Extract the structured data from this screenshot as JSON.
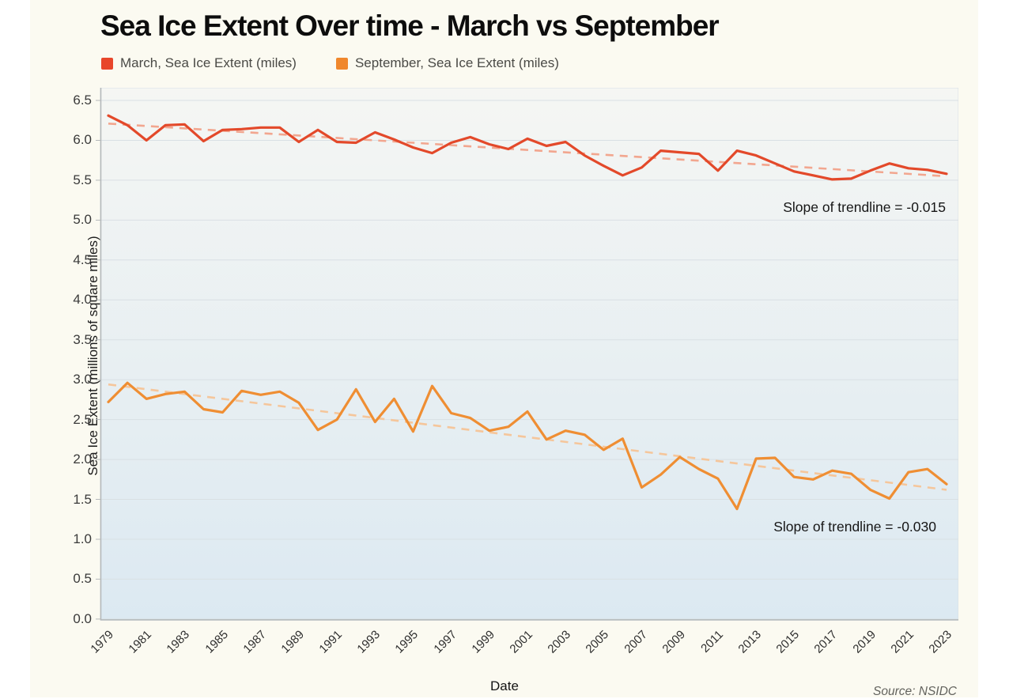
{
  "chart": {
    "title": "Sea Ice Extent Over time - March vs September",
    "xlabel": "Date",
    "ylabel": "Sea Ice Extent (millions of square miles)",
    "source": "Source: NSIDC",
    "legend": [
      {
        "label": "March, Sea Ice Extent (miles)",
        "color": "#e8462b"
      },
      {
        "label": "September, Sea Ice Extent (miles)",
        "color": "#f0872c"
      }
    ],
    "annotations": [
      {
        "text": "Slope of trendline = -0.015",
        "series": "March"
      },
      {
        "text": "Slope of trendline = -0.030",
        "series": "September"
      }
    ],
    "colors": {
      "card_background": "#fbfaf1",
      "plot_gradient_top": "#f5f6f3",
      "plot_gradient_bottom": "#dce9f2",
      "gridline": "#d9e0e4",
      "axis": "#b4b8ba",
      "march_line": "#e3492a",
      "march_trendline": "#f2a68f",
      "september_line": "#ef8e33",
      "september_trendline": "#f5c69b"
    }
  },
  "chart_data": {
    "type": "line",
    "title": "Sea Ice Extent Over time - March vs September",
    "xlabel": "Date",
    "ylabel": "Sea Ice Extent (millions of square miles)",
    "ylim": [
      0.0,
      6.5
    ],
    "ytick_step": 0.5,
    "grid": true,
    "legend_position": "top-left",
    "x": [
      1979,
      1980,
      1981,
      1982,
      1983,
      1984,
      1985,
      1986,
      1987,
      1988,
      1989,
      1990,
      1991,
      1992,
      1993,
      1994,
      1995,
      1996,
      1997,
      1998,
      1999,
      2000,
      2001,
      2002,
      2003,
      2004,
      2005,
      2006,
      2007,
      2008,
      2009,
      2010,
      2011,
      2012,
      2013,
      2014,
      2015,
      2016,
      2017,
      2018,
      2019,
      2020,
      2021,
      2022,
      2023
    ],
    "xticks": [
      "1979",
      "1981",
      "1983",
      "1985",
      "1987",
      "1989",
      "1991",
      "1993",
      "1995",
      "1997",
      "1999",
      "2001",
      "2003",
      "2005",
      "2007",
      "2009",
      "2011",
      "2013",
      "2015",
      "2017",
      "2019",
      "2021",
      "2023"
    ],
    "yticks": [
      "6.5",
      "6.0",
      "5.5",
      "5.0",
      "4.5",
      "4.0",
      "3.5",
      "3.0",
      "2.5",
      "2.0",
      "1.5",
      "1.0",
      "0.5",
      "0.0"
    ],
    "series": [
      {
        "name": "March, Sea Ice Extent (miles)",
        "color": "#e3492a",
        "style": "solid",
        "values": [
          6.31,
          6.19,
          6.0,
          6.19,
          6.2,
          5.99,
          6.13,
          6.14,
          6.16,
          6.16,
          5.98,
          6.13,
          5.98,
          5.97,
          6.1,
          6.01,
          5.91,
          5.84,
          5.97,
          6.04,
          5.95,
          5.89,
          6.02,
          5.93,
          5.98,
          5.81,
          5.68,
          5.56,
          5.66,
          5.87,
          5.85,
          5.83,
          5.62,
          5.87,
          5.81,
          5.71,
          5.61,
          5.56,
          5.51,
          5.52,
          5.62,
          5.71,
          5.65,
          5.63,
          5.58
        ]
      },
      {
        "name": "September, Sea Ice Extent (miles)",
        "color": "#ef8e33",
        "style": "solid",
        "values": [
          2.72,
          2.96,
          2.76,
          2.82,
          2.85,
          2.63,
          2.59,
          2.86,
          2.81,
          2.85,
          2.71,
          2.37,
          2.5,
          2.88,
          2.47,
          2.76,
          2.35,
          2.92,
          2.58,
          2.52,
          2.36,
          2.41,
          2.6,
          2.25,
          2.36,
          2.31,
          2.12,
          2.26,
          1.65,
          1.81,
          2.03,
          1.88,
          1.76,
          1.38,
          2.01,
          2.02,
          1.78,
          1.75,
          1.86,
          1.82,
          1.62,
          1.51,
          1.84,
          1.88,
          1.69
        ]
      },
      {
        "name": "March trendline",
        "color": "#f2a68f",
        "style": "dashed",
        "slope": -0.015,
        "trend_start": 6.21,
        "trend_end": 5.55
      },
      {
        "name": "September trendline",
        "color": "#f5c69b",
        "style": "dashed",
        "slope": -0.03,
        "trend_start": 2.94,
        "trend_end": 1.62
      }
    ]
  }
}
